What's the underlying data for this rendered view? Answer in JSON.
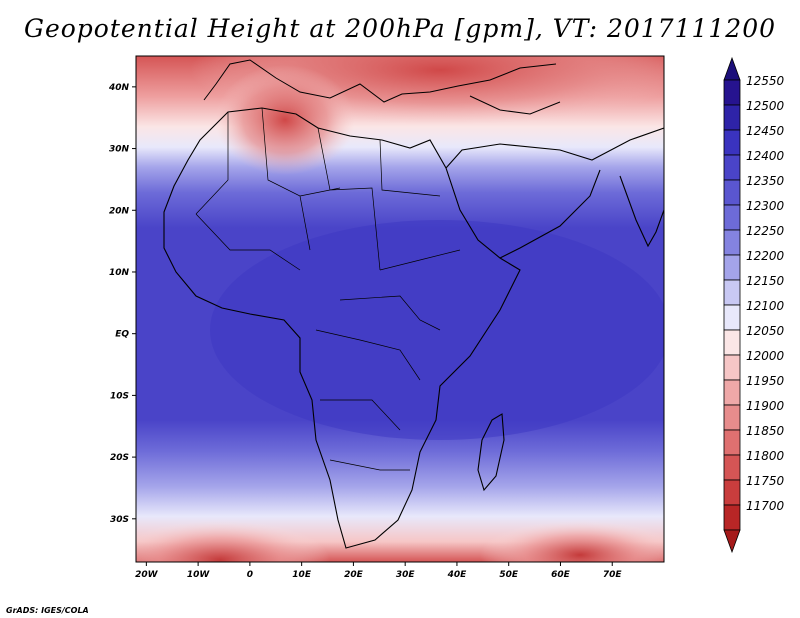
{
  "title": "Geopotential Height at 200hPa [gpm], VT: 2017111200",
  "footer": "GrADS: IGES/COLA",
  "map": {
    "region": "Africa",
    "extent": {
      "lon_min": -22,
      "lon_max": 80,
      "lat_min": -37,
      "lat_max": 45
    },
    "lat_labels": [
      {
        "lat": 40,
        "text": "40N"
      },
      {
        "lat": 30,
        "text": "30N"
      },
      {
        "lat": 20,
        "text": "20N"
      },
      {
        "lat": 10,
        "text": "10N"
      },
      {
        "lat": 0,
        "text": "EQ"
      },
      {
        "lat": -10,
        "text": "10S"
      },
      {
        "lat": -20,
        "text": "20S"
      },
      {
        "lat": -30,
        "text": "30S"
      }
    ],
    "lon_labels": [
      {
        "lon": -20,
        "text": "20W"
      },
      {
        "lon": -10,
        "text": "10W"
      },
      {
        "lon": 0,
        "text": "0"
      },
      {
        "lon": 10,
        "text": "10E"
      },
      {
        "lon": 20,
        "text": "20E"
      },
      {
        "lon": 30,
        "text": "30E"
      },
      {
        "lon": 40,
        "text": "40E"
      },
      {
        "lon": 50,
        "text": "50E"
      },
      {
        "lon": 60,
        "text": "60E"
      },
      {
        "lon": 70,
        "text": "70E"
      }
    ]
  },
  "colorbar": {
    "levels": [
      {
        "label": "12550",
        "color": "#26138f"
      },
      {
        "label": "12500",
        "color": "#2e23a8"
      },
      {
        "label": "12450",
        "color": "#3a33bf"
      },
      {
        "label": "12400",
        "color": "#4a44c8"
      },
      {
        "label": "12350",
        "color": "#5a56d0"
      },
      {
        "label": "12300",
        "color": "#6d6bd8"
      },
      {
        "label": "12250",
        "color": "#8483e0"
      },
      {
        "label": "12200",
        "color": "#a4a4ea"
      },
      {
        "label": "12150",
        "color": "#c8c8f3"
      },
      {
        "label": "12100",
        "color": "#e8e8fb"
      },
      {
        "label": "12050",
        "color": "#fbe6e6"
      },
      {
        "label": "12000",
        "color": "#f6c6c6"
      },
      {
        "label": "11950",
        "color": "#efa8a8"
      },
      {
        "label": "11900",
        "color": "#e78c8c"
      },
      {
        "label": "11850",
        "color": "#df7070"
      },
      {
        "label": "11800",
        "color": "#d55555"
      },
      {
        "label": "11750",
        "color": "#c93d3d"
      },
      {
        "label": "11700",
        "color": "#b82626"
      }
    ],
    "top_arrow_color": "#1c0f7a",
    "bottom_arrow_color": "#a51a1a"
  }
}
